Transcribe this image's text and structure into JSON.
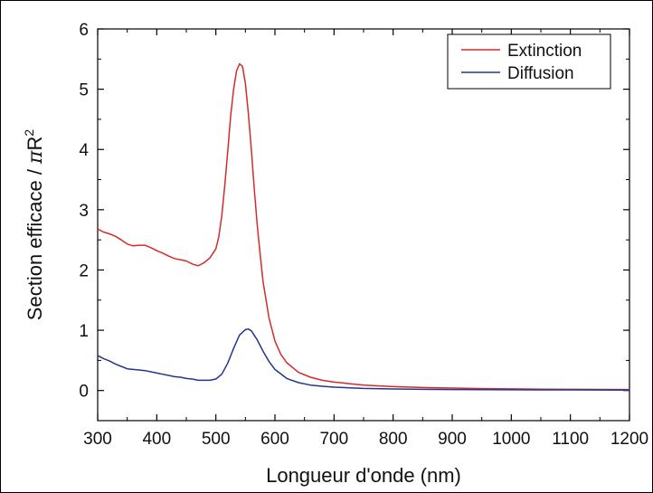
{
  "chart_data": {
    "type": "line",
    "title": "",
    "xlabel": "Longueur d'onde (nm)",
    "ylabel_prefix": "Section efficace / ",
    "ylabel_pi": "π",
    "ylabel_r": "R",
    "ylabel_exp": "2",
    "xlim": [
      300,
      1200
    ],
    "ylim": [
      -0.5,
      6
    ],
    "xticks": [
      300,
      400,
      500,
      600,
      700,
      800,
      900,
      1000,
      1100,
      1200
    ],
    "yticks": [
      0,
      1,
      2,
      3,
      4,
      5,
      6
    ],
    "grid": false,
    "legend_position": "top-right",
    "series": [
      {
        "name": "Extinction",
        "color": "#d62a2a",
        "x": [
          300,
          310,
          320,
          330,
          340,
          350,
          360,
          370,
          380,
          390,
          400,
          410,
          420,
          430,
          440,
          450,
          460,
          470,
          480,
          490,
          500,
          505,
          510,
          515,
          520,
          525,
          530,
          535,
          540,
          545,
          550,
          555,
          560,
          565,
          570,
          575,
          580,
          590,
          600,
          610,
          620,
          640,
          660,
          680,
          700,
          750,
          800,
          850,
          900,
          950,
          1000,
          1050,
          1100,
          1150,
          1200
        ],
        "y": [
          2.68,
          2.63,
          2.6,
          2.56,
          2.5,
          2.43,
          2.4,
          2.41,
          2.41,
          2.37,
          2.32,
          2.28,
          2.23,
          2.19,
          2.17,
          2.15,
          2.1,
          2.07,
          2.12,
          2.2,
          2.35,
          2.55,
          2.9,
          3.4,
          3.95,
          4.55,
          5.0,
          5.3,
          5.42,
          5.38,
          5.1,
          4.6,
          4.0,
          3.35,
          2.75,
          2.25,
          1.8,
          1.2,
          0.82,
          0.6,
          0.46,
          0.3,
          0.22,
          0.17,
          0.14,
          0.09,
          0.065,
          0.05,
          0.04,
          0.032,
          0.027,
          0.023,
          0.02,
          0.018,
          0.016
        ]
      },
      {
        "name": "Diffusion",
        "color": "#24358f",
        "x": [
          300,
          310,
          320,
          330,
          340,
          350,
          360,
          370,
          380,
          390,
          400,
          410,
          420,
          430,
          440,
          450,
          460,
          470,
          480,
          490,
          500,
          510,
          520,
          530,
          540,
          550,
          555,
          560,
          570,
          580,
          590,
          600,
          620,
          640,
          660,
          680,
          700,
          750,
          800,
          850,
          900,
          950,
          1000,
          1050,
          1100,
          1150,
          1200
        ],
        "y": [
          0.58,
          0.53,
          0.49,
          0.44,
          0.4,
          0.36,
          0.35,
          0.34,
          0.33,
          0.31,
          0.29,
          0.27,
          0.25,
          0.23,
          0.22,
          0.2,
          0.19,
          0.17,
          0.17,
          0.17,
          0.19,
          0.27,
          0.45,
          0.7,
          0.92,
          1.01,
          1.02,
          0.99,
          0.84,
          0.65,
          0.48,
          0.35,
          0.2,
          0.13,
          0.09,
          0.07,
          0.055,
          0.035,
          0.025,
          0.02,
          0.017,
          0.014,
          0.012,
          0.011,
          0.01,
          0.009,
          0.008
        ]
      }
    ]
  }
}
